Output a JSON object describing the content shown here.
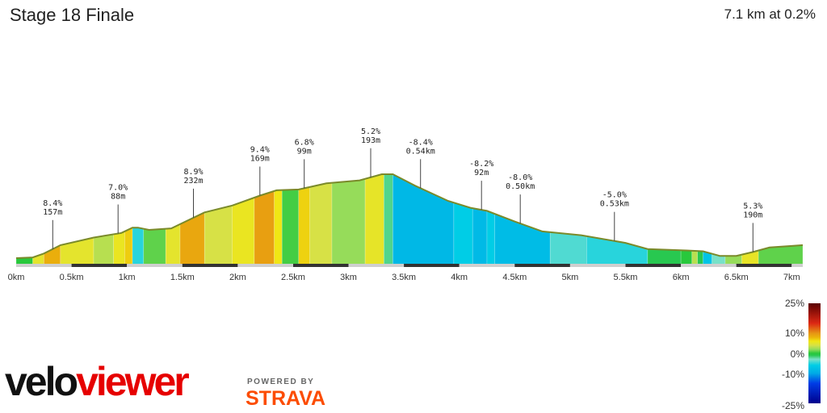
{
  "header": {
    "title": "Stage 18 Finale",
    "summary": "7.1 km at 0.2%"
  },
  "branding": {
    "logo_part1": "velo",
    "logo_part2": "viewer",
    "powered_by": "POWERED BY",
    "strava": "STRAVA"
  },
  "colors": {
    "brand_red": "#e60000",
    "strava_orange": "#fc4c02",
    "outline": "#7a8a2a"
  },
  "chart_data": {
    "type": "area",
    "xlabel": "",
    "ylabel": "",
    "xlim": [
      0,
      7.1
    ],
    "x_ticks": [
      "0km",
      "0.5km",
      "1km",
      "1.5km",
      "2km",
      "2.5km",
      "3km",
      "3.5km",
      "4km",
      "4.5km",
      "5km",
      "5.5km",
      "6km",
      "6.5km",
      "7km"
    ],
    "profile": [
      {
        "x": 0.0,
        "elev": 0
      },
      {
        "x": 0.15,
        "elev": 1
      },
      {
        "x": 0.25,
        "elev": 6
      },
      {
        "x": 0.4,
        "elev": 17
      },
      {
        "x": 0.7,
        "elev": 27
      },
      {
        "x": 0.95,
        "elev": 33
      },
      {
        "x": 1.05,
        "elev": 40
      },
      {
        "x": 1.1,
        "elev": 40
      },
      {
        "x": 1.2,
        "elev": 37
      },
      {
        "x": 1.4,
        "elev": 39
      },
      {
        "x": 1.5,
        "elev": 46
      },
      {
        "x": 1.7,
        "elev": 60
      },
      {
        "x": 1.95,
        "elev": 69
      },
      {
        "x": 2.2,
        "elev": 82
      },
      {
        "x": 2.35,
        "elev": 89
      },
      {
        "x": 2.55,
        "elev": 90
      },
      {
        "x": 2.8,
        "elev": 98
      },
      {
        "x": 3.1,
        "elev": 102
      },
      {
        "x": 3.3,
        "elev": 110
      },
      {
        "x": 3.4,
        "elev": 110
      },
      {
        "x": 3.6,
        "elev": 95
      },
      {
        "x": 3.9,
        "elev": 75
      },
      {
        "x": 4.1,
        "elev": 66
      },
      {
        "x": 4.25,
        "elev": 62
      },
      {
        "x": 4.5,
        "elev": 48
      },
      {
        "x": 4.75,
        "elev": 35
      },
      {
        "x": 5.1,
        "elev": 30
      },
      {
        "x": 5.5,
        "elev": 20
      },
      {
        "x": 5.7,
        "elev": 12
      },
      {
        "x": 6.05,
        "elev": 10
      },
      {
        "x": 6.2,
        "elev": 9
      },
      {
        "x": 6.35,
        "elev": 3
      },
      {
        "x": 6.5,
        "elev": 3
      },
      {
        "x": 6.65,
        "elev": 8
      },
      {
        "x": 6.8,
        "elev": 14
      },
      {
        "x": 7.0,
        "elev": 16
      },
      {
        "x": 7.1,
        "elev": 17
      }
    ],
    "segments": [
      {
        "start": 0.0,
        "end": 0.15,
        "gradient": 0
      },
      {
        "start": 0.15,
        "end": 0.25,
        "gradient": 5
      },
      {
        "start": 0.25,
        "end": 0.4,
        "gradient": 8.4
      },
      {
        "start": 0.4,
        "end": 0.7,
        "gradient": 5
      },
      {
        "start": 0.7,
        "end": 0.88,
        "gradient": 3
      },
      {
        "start": 0.88,
        "end": 0.98,
        "gradient": 5.5
      },
      {
        "start": 0.98,
        "end": 1.05,
        "gradient": 7
      },
      {
        "start": 1.05,
        "end": 1.15,
        "gradient": -5
      },
      {
        "start": 1.15,
        "end": 1.35,
        "gradient": 1
      },
      {
        "start": 1.35,
        "end": 1.48,
        "gradient": 5
      },
      {
        "start": 1.48,
        "end": 1.7,
        "gradient": 8.9
      },
      {
        "start": 1.7,
        "end": 1.95,
        "gradient": 4
      },
      {
        "start": 1.95,
        "end": 2.15,
        "gradient": 5.5
      },
      {
        "start": 2.15,
        "end": 2.33,
        "gradient": 9.4
      },
      {
        "start": 2.33,
        "end": 2.4,
        "gradient": 6
      },
      {
        "start": 2.4,
        "end": 2.55,
        "gradient": 0.5
      },
      {
        "start": 2.55,
        "end": 2.65,
        "gradient": 6.8
      },
      {
        "start": 2.65,
        "end": 2.85,
        "gradient": 4
      },
      {
        "start": 2.85,
        "end": 3.15,
        "gradient": 2
      },
      {
        "start": 3.15,
        "end": 3.32,
        "gradient": 5.2
      },
      {
        "start": 3.32,
        "end": 3.4,
        "gradient": -2
      },
      {
        "start": 3.4,
        "end": 3.95,
        "gradient": -8.4
      },
      {
        "start": 3.95,
        "end": 4.12,
        "gradient": -6
      },
      {
        "start": 4.12,
        "end": 4.25,
        "gradient": -8.2
      },
      {
        "start": 4.25,
        "end": 4.32,
        "gradient": -6
      },
      {
        "start": 4.32,
        "end": 4.82,
        "gradient": -8.0
      },
      {
        "start": 4.82,
        "end": 5.15,
        "gradient": -4
      },
      {
        "start": 5.15,
        "end": 5.7,
        "gradient": -5.0
      },
      {
        "start": 5.7,
        "end": 6.0,
        "gradient": -1
      },
      {
        "start": 6.0,
        "end": 6.1,
        "gradient": 0
      },
      {
        "start": 6.1,
        "end": 6.15,
        "gradient": 3
      },
      {
        "start": 6.15,
        "end": 6.2,
        "gradient": -1
      },
      {
        "start": 6.2,
        "end": 6.28,
        "gradient": -7
      },
      {
        "start": 6.28,
        "end": 6.4,
        "gradient": -3
      },
      {
        "start": 6.4,
        "end": 6.55,
        "gradient": 2
      },
      {
        "start": 6.55,
        "end": 6.7,
        "gradient": 5.3
      },
      {
        "start": 6.7,
        "end": 7.1,
        "gradient": 1
      }
    ],
    "annotations": [
      {
        "x": 0.33,
        "grade": "8.4%",
        "length": "157m"
      },
      {
        "x": 0.92,
        "grade": "7.0%",
        "length": "88m"
      },
      {
        "x": 1.6,
        "grade": "8.9%",
        "length": "232m"
      },
      {
        "x": 2.2,
        "grade": "9.4%",
        "length": "169m"
      },
      {
        "x": 2.6,
        "grade": "6.8%",
        "length": "99m"
      },
      {
        "x": 3.2,
        "grade": "5.2%",
        "length": "193m"
      },
      {
        "x": 3.65,
        "grade": "-8.4%",
        "length": "0.54km"
      },
      {
        "x": 4.2,
        "grade": "-8.2%",
        "length": "92m"
      },
      {
        "x": 4.55,
        "grade": "-8.0%",
        "length": "0.50km"
      },
      {
        "x": 5.4,
        "grade": "-5.0%",
        "length": "0.53km"
      },
      {
        "x": 6.65,
        "grade": "5.3%",
        "length": "190m"
      }
    ],
    "legend": {
      "labels": [
        "25%",
        "10%",
        "0%",
        "-10%",
        "-25%"
      ],
      "values": [
        25,
        10,
        0,
        -10,
        -25
      ]
    }
  }
}
